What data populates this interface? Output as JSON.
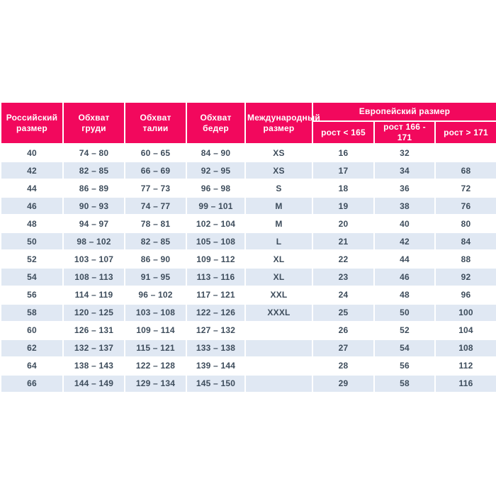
{
  "colors": {
    "accent_pink": "#f2085d",
    "stripe_blue": "#e0e8f3",
    "body_text": "#3e4d5c",
    "header_text": "#ffffff",
    "page_background": "#ffffff"
  },
  "header": {
    "russian_size": "Российский размер",
    "chest": "Обхват груди",
    "waist": "Обхват талии",
    "hips": "Обхват бедер",
    "international_size": "Международный размер",
    "european_size": "Европейский размер",
    "height_lt_165": "рост < 165",
    "height_166_171": "рост 166 - 171",
    "height_gt_171": "рост > 171"
  },
  "chart_data": {
    "type": "table",
    "title": "",
    "columns": [
      "Российский размер",
      "Обхват груди",
      "Обхват талии",
      "Обхват бедер",
      "Международный размер",
      "Европейский размер / рост < 165",
      "Европейский размер / рост 166 - 171",
      "Европейский размер / рост > 171"
    ],
    "rows": [
      [
        "40",
        "74 – 80",
        "60 – 65",
        "84 – 90",
        "XS",
        "16",
        "32",
        ""
      ],
      [
        "42",
        "82 – 85",
        "66 – 69",
        "92 – 95",
        "XS",
        "17",
        "34",
        "68"
      ],
      [
        "44",
        "86 – 89",
        "77 – 73",
        "96 – 98",
        "S",
        "18",
        "36",
        "72"
      ],
      [
        "46",
        "90 – 93",
        "74 – 77",
        "99 – 101",
        "M",
        "19",
        "38",
        "76"
      ],
      [
        "48",
        "94 – 97",
        "78 – 81",
        "102 – 104",
        "M",
        "20",
        "40",
        "80"
      ],
      [
        "50",
        "98 – 102",
        "82 – 85",
        "105 – 108",
        "L",
        "21",
        "42",
        "84"
      ],
      [
        "52",
        "103 – 107",
        "86 – 90",
        "109 – 112",
        "XL",
        "22",
        "44",
        "88"
      ],
      [
        "54",
        "108 – 113",
        "91 – 95",
        "113 – 116",
        "XL",
        "23",
        "46",
        "92"
      ],
      [
        "56",
        "114 – 119",
        "96 – 102",
        "117 – 121",
        "XXL",
        "24",
        "48",
        "96"
      ],
      [
        "58",
        "120 – 125",
        "103 – 108",
        "122 – 126",
        "XXXL",
        "25",
        "50",
        "100"
      ],
      [
        "60",
        "126 – 131",
        "109 – 114",
        "127 – 132",
        "",
        "26",
        "52",
        "104"
      ],
      [
        "62",
        "132 – 137",
        "115 – 121",
        "133 – 138",
        "",
        "27",
        "54",
        "108"
      ],
      [
        "64",
        "138 – 143",
        "122 – 128",
        "139 – 144",
        "",
        "28",
        "56",
        "112"
      ],
      [
        "66",
        "144 – 149",
        "129 – 134",
        "145 – 150",
        "",
        "29",
        "58",
        "116"
      ]
    ]
  }
}
